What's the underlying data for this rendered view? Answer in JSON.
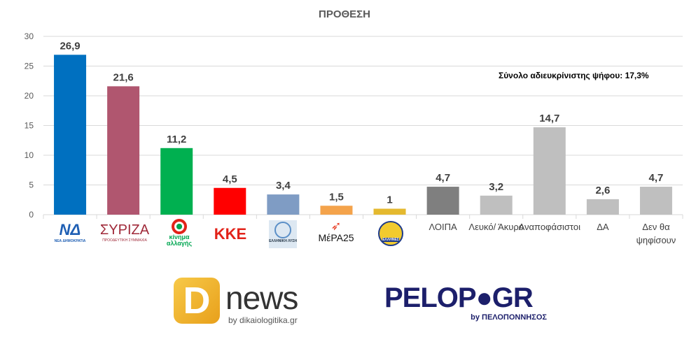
{
  "chart_data": {
    "type": "bar",
    "title": "ΠΡΟΘΕΣΗ",
    "categories": [
      "ΝΔ",
      "ΣΥΡΙΖΑ",
      "ΚΙΝΑΛ",
      "ΚΚΕ",
      "Ελληνική Λύση",
      "ΜέΡΑ25",
      "Ελληνες",
      "ΛΟΙΠΑ",
      "Λευκό/ Άκυρο",
      "Αναποφάσιστοι",
      "ΔΑ",
      "Δεν θα ψηφίσουν"
    ],
    "category_labels_shown": [
      "",
      "",
      "",
      "",
      "",
      "",
      "",
      "ΛΟΙΠΑ",
      "Λευκό/ Άκυρο",
      "Αναποφάσιστοι",
      "ΔΑ",
      "Δεν θα ψηφίσουν"
    ],
    "values": [
      26.9,
      21.6,
      11.2,
      4.5,
      3.4,
      1.5,
      1,
      4.7,
      3.2,
      14.7,
      2.6,
      4.7
    ],
    "data_labels": [
      "26,9",
      "21,6",
      "11,2",
      "4,5",
      "3,4",
      "1,5",
      "1",
      "4,7",
      "3,2",
      "14,7",
      "2,6",
      "4,7"
    ],
    "colors": [
      "#0070c0",
      "#b0566f",
      "#00b050",
      "#ff0000",
      "#7f9cc4",
      "#f4a34b",
      "#e4b92f",
      "#7f7f7f",
      "#bfbfbf",
      "#bfbfbf",
      "#bfbfbf",
      "#bfbfbf"
    ],
    "ylim": [
      0,
      30
    ],
    "yticks": [
      0,
      5,
      10,
      15,
      20,
      25,
      30
    ],
    "grid": true,
    "annotation": "Σύνολο αδιευκρίνιστης ψήφου: 17,3%"
  },
  "logos": {
    "nd": "ΝΔ",
    "nd_sub": "ΝΕΑ ΔΗΜΟΚΡΑΤΙΑ",
    "syriza": "ΣΥΡΙΖΑ",
    "syriza_sub": "ΠΡΟΟΔΕΥΤΙΚΗ ΣΥΜΜΑΧΙΑ",
    "kinal": "κίνημα αλλαγής",
    "kke": "ΚΚΕ",
    "ellisi": "ΕΛΛΗΝΙΚΗ ΛΥΣΗ",
    "mera": "ΜέΡΑ25",
    "ellines": "ΕΛΛΗΝΕΣ",
    "dnews_d": "D",
    "dnews": "news",
    "dnews_sub": "by dikaiologitika.gr",
    "pelop": "PELOP●GR",
    "pelop_sub": "by ΠΕΛΟΠΟΝΝΗΣΟΣ"
  }
}
